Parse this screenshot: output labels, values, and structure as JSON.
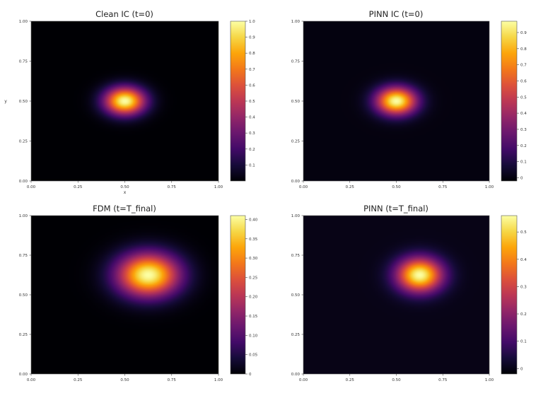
{
  "chart_data": [
    {
      "type": "heatmap",
      "title": "Clean IC (t=0)",
      "xlabel": "x",
      "ylabel": "y",
      "xlim": [
        0,
        1
      ],
      "ylim": [
        0,
        1
      ],
      "x_ticks": [
        "0.00",
        "0.25",
        "0.50",
        "0.75",
        "1.00"
      ],
      "y_ticks": [
        "0.00",
        "0.25",
        "0.50",
        "0.75",
        "1.00"
      ],
      "colormap": "inferno",
      "colorbar_range": [
        0,
        1.0
      ],
      "colorbar_ticks": [
        "0.1",
        "0.2",
        "0.3",
        "0.4",
        "0.5",
        "0.6",
        "0.7",
        "0.8",
        "0.9",
        "1.0"
      ],
      "colorbar_tick_values": [
        0.1,
        0.2,
        0.3,
        0.4,
        0.5,
        0.6,
        0.7,
        0.8,
        0.9,
        1.0
      ],
      "peak": {
        "x": 0.5,
        "y": 0.5,
        "value": 1.0,
        "sigma_x": 0.075,
        "sigma_y": 0.06
      }
    },
    {
      "type": "heatmap",
      "title": "PINN IC (t=0)",
      "xlabel": "",
      "ylabel": "",
      "xlim": [
        0,
        1
      ],
      "ylim": [
        0,
        1
      ],
      "x_ticks": [
        "0.00",
        "0.25",
        "0.50",
        "0.75",
        "1.00"
      ],
      "y_ticks": [
        "0.00",
        "0.25",
        "0.50",
        "0.75",
        "1.00"
      ],
      "colormap": "inferno",
      "colorbar_range": [
        -0.02,
        0.97
      ],
      "colorbar_ticks": [
        "0",
        "0.1",
        "0.2",
        "0.3",
        "0.4",
        "0.5",
        "0.6",
        "0.7",
        "0.8",
        "0.9"
      ],
      "colorbar_tick_values": [
        0,
        0.1,
        0.2,
        0.3,
        0.4,
        0.5,
        0.6,
        0.7,
        0.8,
        0.9
      ],
      "peak": {
        "x": 0.5,
        "y": 0.5,
        "value": 0.97,
        "sigma_x": 0.075,
        "sigma_y": 0.06
      }
    },
    {
      "type": "heatmap",
      "title": "FDM (t=T_final)",
      "xlabel": "",
      "ylabel": "",
      "xlim": [
        0,
        1
      ],
      "ylim": [
        0,
        1
      ],
      "x_ticks": [
        "0.00",
        "0.25",
        "0.50",
        "0.75",
        "1.00"
      ],
      "y_ticks": [
        "0.00",
        "0.25",
        "0.50",
        "0.75",
        "1.00"
      ],
      "colormap": "inferno",
      "colorbar_range": [
        0,
        0.41
      ],
      "colorbar_ticks": [
        "0",
        "0.05",
        "0.10",
        "0.15",
        "0.20",
        "0.25",
        "0.30",
        "0.35",
        "0.40"
      ],
      "colorbar_tick_values": [
        0,
        0.05,
        0.1,
        0.15,
        0.2,
        0.25,
        0.3,
        0.35,
        0.4
      ],
      "peak": {
        "x": 0.625,
        "y": 0.625,
        "value": 0.41,
        "sigma_x": 0.115,
        "sigma_y": 0.095
      }
    },
    {
      "type": "heatmap",
      "title": "PINN (t=T_final)",
      "xlabel": "",
      "ylabel": "",
      "xlim": [
        0,
        1
      ],
      "ylim": [
        0,
        1
      ],
      "x_ticks": [
        "0.00",
        "0.25",
        "0.50",
        "0.75",
        "1.00"
      ],
      "y_ticks": [
        "0.00",
        "0.25",
        "0.50",
        "0.75",
        "1.00"
      ],
      "colormap": "inferno",
      "colorbar_range": [
        -0.02,
        0.56
      ],
      "colorbar_ticks": [
        "0",
        "0.1",
        "0.2",
        "0.3",
        "0.4",
        "0.5"
      ],
      "colorbar_tick_values": [
        0,
        0.1,
        0.2,
        0.3,
        0.4,
        0.5
      ],
      "peak": {
        "x": 0.625,
        "y": 0.625,
        "value": 0.56,
        "sigma_x": 0.085,
        "sigma_y": 0.075
      }
    }
  ]
}
